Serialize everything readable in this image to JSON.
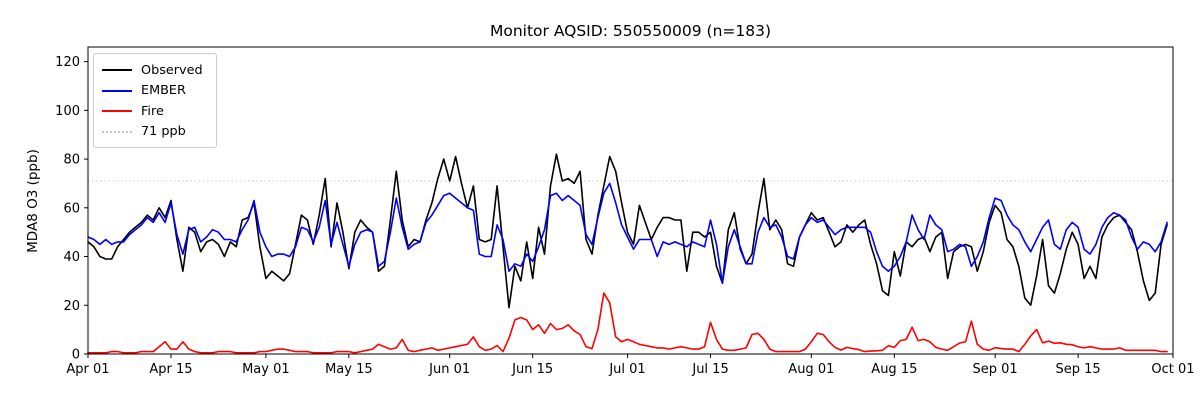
{
  "chart_data": {
    "type": "line",
    "title": "Monitor AQSID: 550550009 (n=183)",
    "xlabel": "",
    "ylabel": "MDA8 O3 (ppb)",
    "ylim": [
      0,
      126
    ],
    "y_ticks": [
      0,
      20,
      40,
      60,
      80,
      100,
      120
    ],
    "x_unit": "daily values, days since Apr 01",
    "x_range_days": 183,
    "n_points": 183,
    "date_start": "Apr 01",
    "date_end": "Sep 30",
    "grid": false,
    "legend_position": "upper left",
    "x_ticks": [
      {
        "day": 0,
        "label": "Apr 01"
      },
      {
        "day": 14,
        "label": "Apr 15"
      },
      {
        "day": 30,
        "label": "May 01"
      },
      {
        "day": 44,
        "label": "May 15"
      },
      {
        "day": 61,
        "label": "Jun 01"
      },
      {
        "day": 75,
        "label": "Jun 15"
      },
      {
        "day": 91,
        "label": "Jul 01"
      },
      {
        "day": 105,
        "label": "Jul 15"
      },
      {
        "day": 122,
        "label": "Aug 01"
      },
      {
        "day": 136,
        "label": "Aug 15"
      },
      {
        "day": 153,
        "label": "Sep 01"
      },
      {
        "day": 167,
        "label": "Sep 15"
      },
      {
        "day": 183,
        "label": "Oct 01"
      }
    ],
    "threshold": {
      "value": 71,
      "label": "71 ppb",
      "color": "#c4c4c4",
      "style": "dotted"
    },
    "series": [
      {
        "name": "Observed",
        "color": "#000000",
        "values": [
          46,
          44,
          40,
          39,
          39,
          44,
          47,
          50,
          52,
          54,
          57,
          55,
          60,
          56,
          63,
          47,
          34,
          52,
          50,
          42,
          46,
          47,
          45,
          40,
          46,
          44,
          55,
          56,
          62,
          44,
          31,
          34,
          32,
          30,
          33,
          45,
          57,
          55,
          45,
          57,
          72,
          44,
          62,
          50,
          35,
          50,
          55,
          52,
          50,
          34,
          36,
          55,
          75,
          55,
          44,
          47,
          46,
          55,
          62,
          72,
          80,
          71,
          81,
          70,
          60,
          69,
          47,
          46,
          47,
          69,
          44,
          19,
          36,
          30,
          46,
          31,
          52,
          41,
          69,
          82,
          71,
          72,
          70,
          75,
          47,
          41,
          57,
          69,
          81,
          75,
          62,
          50,
          45,
          61,
          54,
          47,
          52,
          56,
          56,
          55,
          55,
          34,
          50,
          50,
          48,
          50,
          36,
          29,
          51,
          58,
          43,
          37,
          41,
          58,
          72,
          51,
          55,
          51,
          37,
          36,
          48,
          53,
          58,
          55,
          56,
          50,
          44,
          46,
          53,
          50,
          53,
          55,
          45,
          37,
          26,
          24,
          42,
          32,
          46,
          44,
          47,
          48,
          42,
          48,
          50,
          31,
          42,
          44,
          45,
          44,
          34,
          42,
          54,
          61,
          58,
          47,
          44,
          36,
          23,
          20,
          32,
          47,
          28,
          25,
          33,
          43,
          50,
          45,
          31,
          36,
          31,
          48,
          53,
          56,
          57,
          54,
          51,
          42,
          30,
          22,
          25,
          45,
          53
        ]
      },
      {
        "name": "EMBER",
        "color": "#0000ff",
        "values": [
          48,
          47,
          45,
          47,
          45,
          46,
          46,
          49,
          51,
          53,
          56,
          54,
          58,
          54,
          62,
          49,
          41,
          51,
          52,
          46,
          48,
          51,
          50,
          47,
          47,
          46,
          51,
          55,
          63,
          50,
          44,
          40,
          41,
          41,
          40,
          44,
          52,
          51,
          46,
          52,
          63,
          45,
          54,
          45,
          36,
          45,
          50,
          51,
          50,
          36,
          38,
          50,
          64,
          52,
          43,
          45,
          46,
          54,
          57,
          61,
          65,
          66,
          64,
          62,
          60,
          59,
          41,
          40,
          40,
          53,
          47,
          34,
          37,
          36,
          41,
          38,
          44,
          51,
          65,
          66,
          63,
          65,
          63,
          61,
          49,
          45,
          56,
          66,
          70,
          62,
          53,
          48,
          43,
          47,
          47,
          47,
          40,
          46,
          45,
          46,
          45,
          44,
          46,
          45,
          44,
          55,
          45,
          29,
          44,
          51,
          44,
          37,
          37,
          50,
          56,
          52,
          53,
          48,
          40,
          39,
          48,
          53,
          56,
          54,
          55,
          52,
          49,
          51,
          52,
          52,
          52,
          52,
          50,
          42,
          36,
          34,
          36,
          40,
          46,
          57,
          51,
          47,
          57,
          53,
          51,
          42,
          43,
          45,
          44,
          36,
          40,
          46,
          56,
          64,
          63,
          57,
          53,
          51,
          46,
          42,
          47,
          52,
          55,
          45,
          43,
          51,
          54,
          52,
          43,
          41,
          45,
          52,
          56,
          58,
          57,
          55,
          48,
          43,
          46,
          45,
          42,
          46,
          54
        ]
      },
      {
        "name": "Fire",
        "color": "#ff0000",
        "values": [
          0.5,
          0.5,
          0.5,
          0.5,
          1,
          1,
          0.5,
          0.5,
          0.5,
          1,
          1,
          1,
          3,
          5,
          2,
          2,
          5,
          2,
          1,
          0.5,
          0.5,
          0.5,
          1,
          1,
          1,
          0.5,
          0.5,
          0.5,
          0.5,
          1,
          1,
          1.5,
          2,
          2,
          1.5,
          1,
          1,
          1,
          0.5,
          0.5,
          0.5,
          0.5,
          1,
          1,
          1,
          0.5,
          1,
          1.5,
          2,
          4,
          3,
          2,
          2.5,
          6,
          1.5,
          1,
          1.5,
          2,
          2.5,
          1.5,
          2,
          2.5,
          3,
          3.5,
          4,
          7,
          3,
          1.5,
          2,
          3.5,
          1,
          6.5,
          14,
          15,
          14,
          10,
          12,
          8.5,
          12.5,
          10,
          10.5,
          12,
          9.5,
          8,
          3,
          2.2,
          10,
          25,
          21,
          7,
          5,
          6,
          5,
          4,
          3.5,
          3,
          2.5,
          2.5,
          2,
          2.5,
          3,
          2.5,
          2,
          2,
          3,
          13,
          6,
          2,
          1.5,
          1.5,
          2,
          2.5,
          8,
          8.5,
          6,
          2,
          1,
          1,
          1,
          1,
          1,
          2,
          5,
          8.5,
          8,
          5,
          2.7,
          1.6,
          2.7,
          2.2,
          1.8,
          1,
          1.2,
          1.3,
          1.5,
          3.4,
          2.7,
          5.5,
          6,
          11,
          5.5,
          6,
          5,
          2.7,
          2,
          1.5,
          3,
          4.5,
          5,
          13.5,
          4,
          2,
          1.5,
          2.6,
          2.2,
          2,
          2,
          1,
          4,
          7.4,
          10,
          4.6,
          5.3,
          4.4,
          4.6,
          4,
          3.8,
          3,
          2.5,
          3,
          2.5,
          2,
          2,
          2,
          2.5,
          1.5,
          1.5,
          1.5,
          1.5,
          1.5,
          1.5,
          1,
          1
        ]
      }
    ]
  }
}
